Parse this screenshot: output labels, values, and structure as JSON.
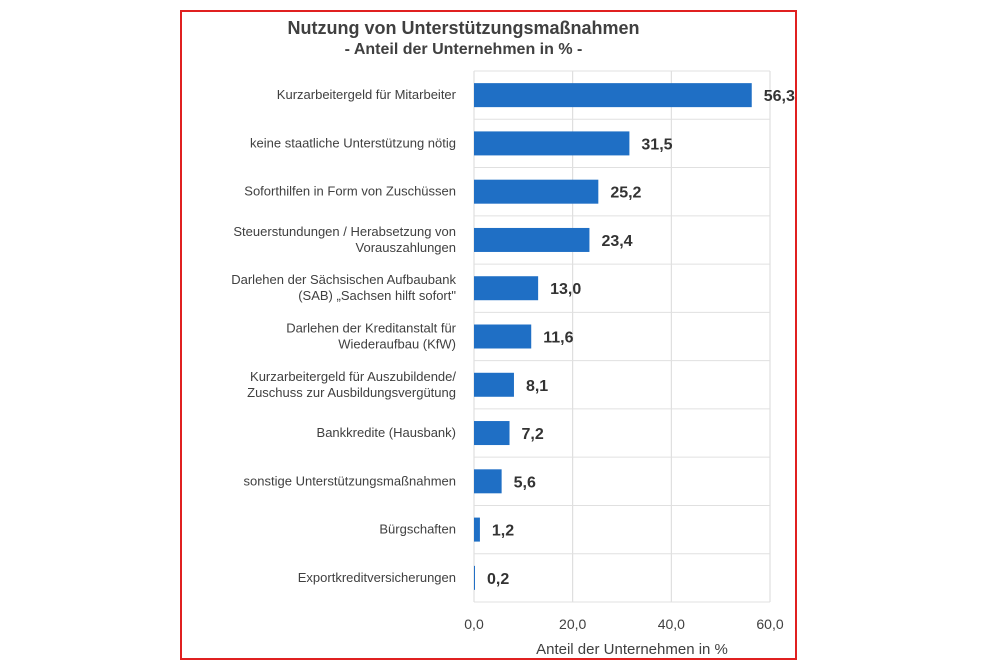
{
  "chart_data": {
    "type": "bar",
    "orientation": "horizontal",
    "title": "Nutzung von Unterstützungsmaßnahmen",
    "subtitle": "- Anteil der Unternehmen in % -",
    "xlabel": "Anteil der Unternehmen in %",
    "ylabel": "",
    "xlim": [
      0,
      60
    ],
    "xticks": [
      "0,0",
      "20,0",
      "40,0",
      "60,0"
    ],
    "grid": true,
    "bar_color": "#1f6fc5",
    "categories": [
      [
        "Kurzarbeitergeld für Mitarbeiter"
      ],
      [
        "keine staatliche Unterstützung nötig"
      ],
      [
        "Soforthilfen in Form von Zuschüssen"
      ],
      [
        "Steuerstundungen / Herabsetzung von",
        "Vorauszahlungen"
      ],
      [
        "Darlehen der Sächsischen Aufbaubank",
        "(SAB) „Sachsen hilft sofort\""
      ],
      [
        "Darlehen der Kreditanstalt für",
        "Wiederaufbau (KfW)"
      ],
      [
        "Kurzarbeitergeld für Auszubildende/",
        "Zuschuss zur Ausbildungsvergütung"
      ],
      [
        "Bankkredite (Hausbank)"
      ],
      [
        "sonstige Unterstützungsmaßnahmen"
      ],
      [
        "Bürgschaften"
      ],
      [
        "Exportkreditversicherungen"
      ]
    ],
    "values": [
      56.3,
      31.5,
      25.2,
      23.4,
      13.0,
      11.6,
      8.1,
      7.2,
      5.6,
      1.2,
      0.2
    ],
    "value_labels": [
      "56,3",
      "31,5",
      "25,2",
      "23,4",
      "13,0",
      "11,6",
      "8,1",
      "7,2",
      "5,6",
      "1,2",
      "0,2"
    ]
  }
}
